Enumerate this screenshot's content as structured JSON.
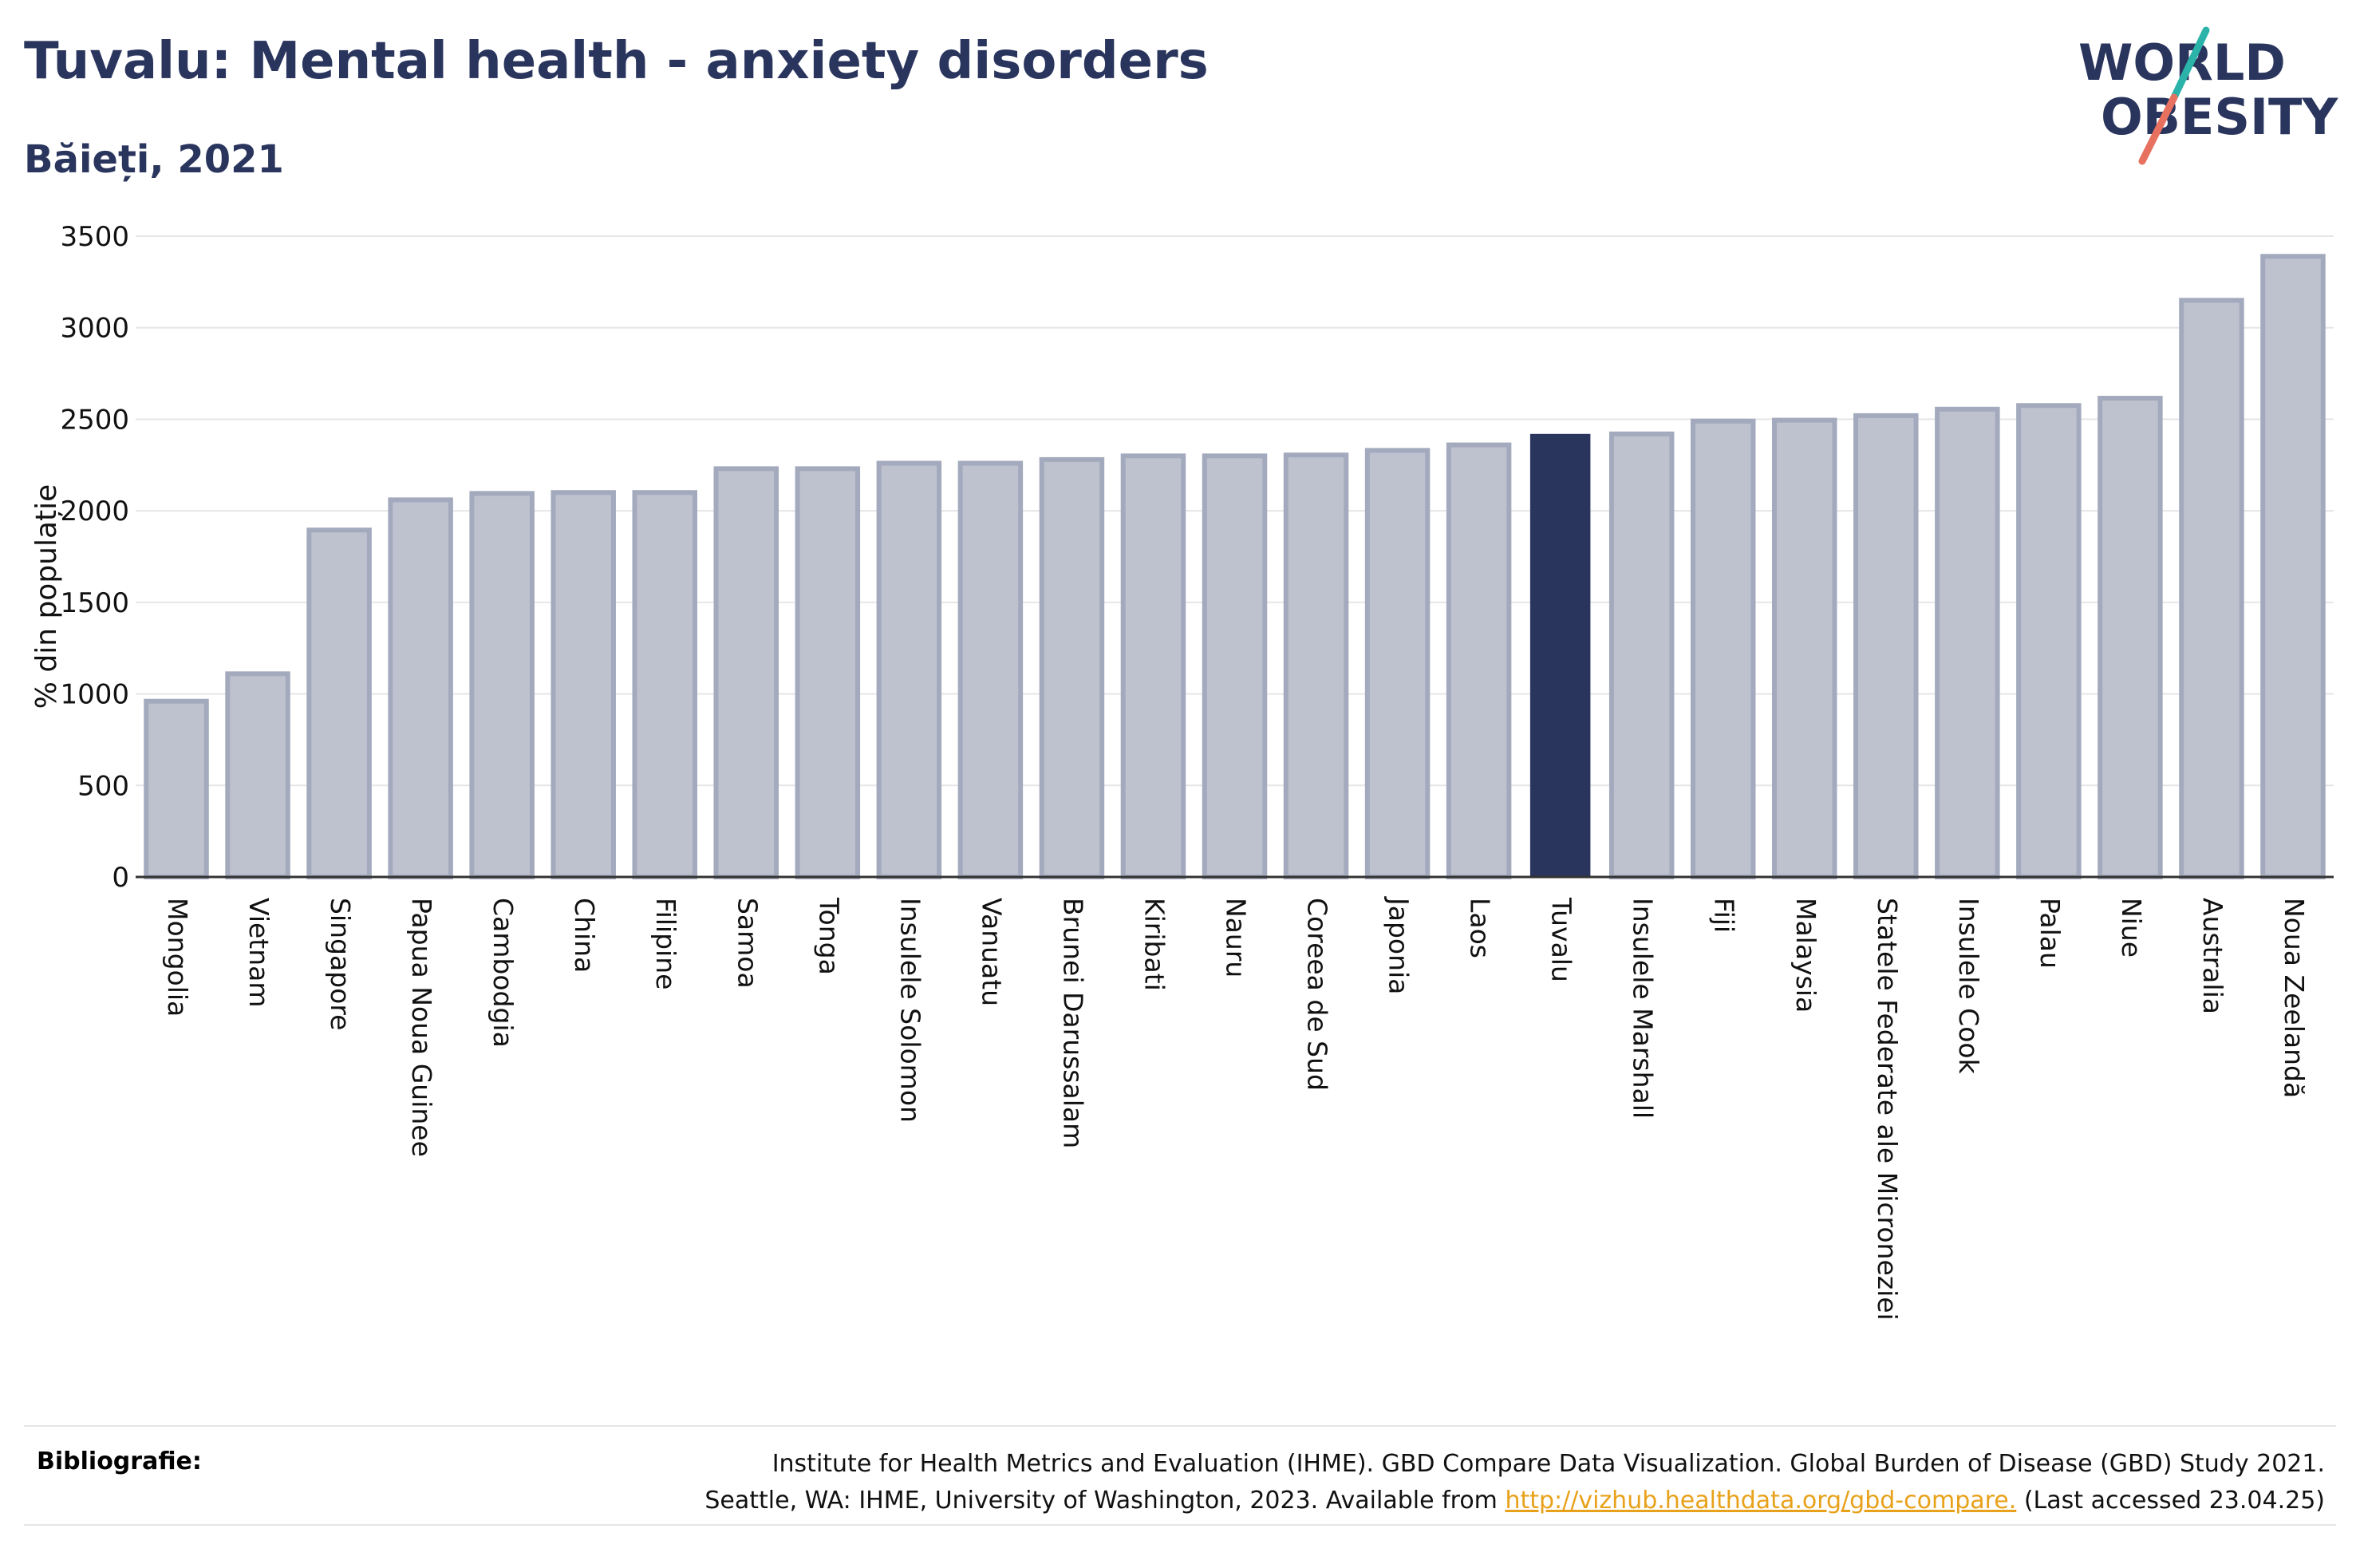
{
  "header": {
    "title": "Tuvalu: Mental health - anxiety disorders",
    "subtitle": "Băieți, 2021"
  },
  "logo": {
    "line1": "WORLD",
    "line2": "OBESITY",
    "colors": {
      "text": "#2a355e",
      "slash_top": "#2bb3a9",
      "slash_bottom": "#e8705f"
    }
  },
  "colors": {
    "bar": "#bec2cf",
    "bar_border": "#a4aabd",
    "highlight": "#2a355e",
    "grid": "#e6e6e9",
    "axis": "#333333"
  },
  "chart_data": {
    "type": "bar",
    "ylabel": "% din populație",
    "ylim": [
      0,
      3500
    ],
    "yticks": [
      0,
      500,
      1000,
      1500,
      2000,
      2500,
      3000,
      3500
    ],
    "grid": true,
    "highlight": "Tuvalu",
    "categories": [
      "Mongolia",
      "Vietnam",
      "Singapore",
      "Papua Noua Guinee",
      "Cambodgia",
      "China",
      "Filipine",
      "Samoa",
      "Tonga",
      "Insulele Solomon",
      "Vanuatu",
      "Brunei Darussalam",
      "Kiribati",
      "Nauru",
      "Coreea de Sud",
      "Japonia",
      "Laos",
      "Tuvalu",
      "Insulele Marshall",
      "Fiji",
      "Malaysia",
      "Statele Federate ale Microneziei",
      "Insulele Cook",
      "Palau",
      "Niue",
      "Australia",
      "Noua Zeelandă"
    ],
    "values": [
      960,
      1110,
      1895,
      2060,
      2095,
      2100,
      2100,
      2230,
      2230,
      2260,
      2260,
      2280,
      2300,
      2300,
      2305,
      2330,
      2360,
      2420,
      2420,
      2490,
      2495,
      2520,
      2555,
      2575,
      2615,
      3150,
      3390
    ]
  },
  "footer": {
    "label": "Bibliografie:",
    "line1": "Institute for Health Metrics and Evaluation (IHME). GBD Compare Data Visualization. Global Burden of Disease (GBD) Study 2021.",
    "line2_prefix": "Seattle, WA: IHME, University of Washington, 2023. Available from ",
    "link": "http://vizhub.healthdata.org/gbd-compare.",
    "line2_suffix": " (Last accessed 23.04.25)"
  }
}
